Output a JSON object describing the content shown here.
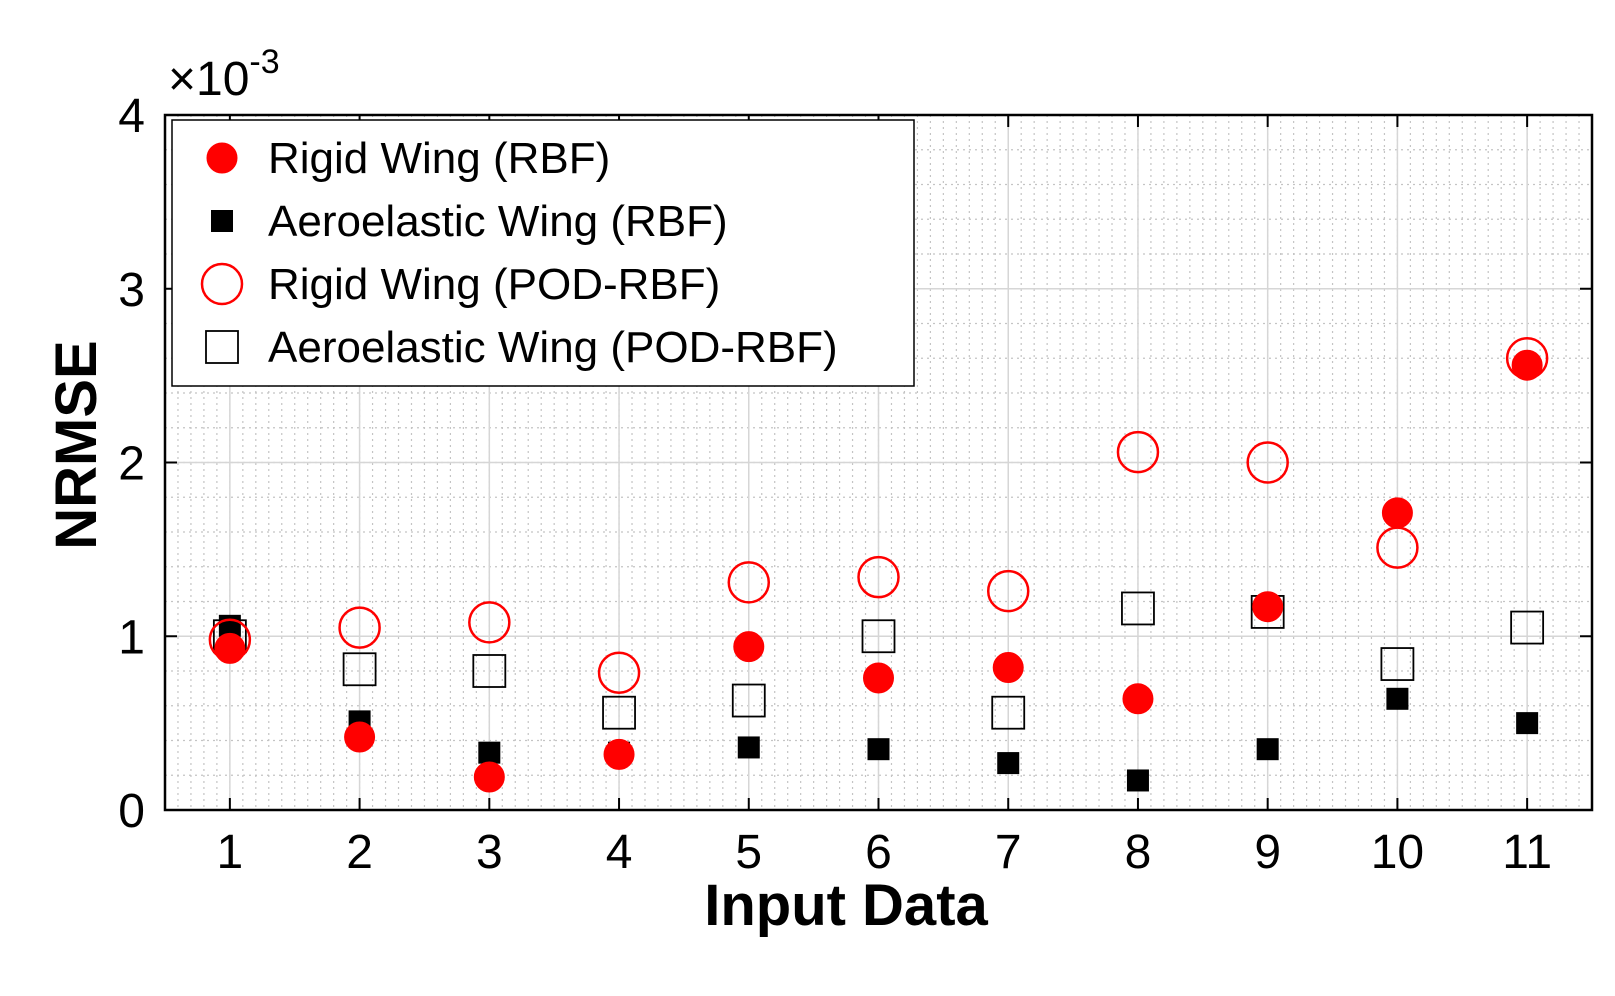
{
  "chart_data": {
    "type": "scatter",
    "title": "",
    "xlabel": "Input Data",
    "ylabel": "NRMSE",
    "x": [
      1,
      2,
      3,
      4,
      5,
      6,
      7,
      8,
      9,
      10,
      11
    ],
    "xlim": [
      0.5,
      11.5
    ],
    "ylim": [
      0,
      4
    ],
    "xticks": [
      "1",
      "2",
      "3",
      "4",
      "5",
      "6",
      "7",
      "8",
      "9",
      "10",
      "11"
    ],
    "yticks": [
      "0",
      "1",
      "2",
      "3",
      "4"
    ],
    "y_multiplier": "×10",
    "y_multiplier_exp": "-3",
    "grid": true,
    "legend_position": "top-left",
    "series": [
      {
        "name": "Rigid Wing (RBF)",
        "marker": "filled-circle",
        "color": "#ff0000",
        "values": [
          0.93,
          0.42,
          0.19,
          0.32,
          0.94,
          0.76,
          0.82,
          0.64,
          1.17,
          1.71,
          2.56
        ]
      },
      {
        "name": "Aeroelastic Wing (RBF)",
        "marker": "filled-square",
        "color": "#000000",
        "values": [
          1.06,
          0.51,
          0.33,
          0.33,
          0.36,
          0.35,
          0.27,
          0.17,
          0.35,
          0.64,
          0.5
        ]
      },
      {
        "name": "Rigid Wing (POD-RBF)",
        "marker": "open-circle",
        "color": "#ff0000",
        "values": [
          0.98,
          1.05,
          1.08,
          0.79,
          1.31,
          1.34,
          1.26,
          2.06,
          2.0,
          1.51,
          2.6
        ]
      },
      {
        "name": "Aeroelastic Wing (POD-RBF)",
        "marker": "open-square",
        "color": "#000000",
        "values": [
          1.0,
          0.81,
          0.8,
          0.56,
          0.63,
          1.0,
          0.56,
          1.16,
          1.14,
          0.84,
          1.05
        ]
      }
    ]
  }
}
